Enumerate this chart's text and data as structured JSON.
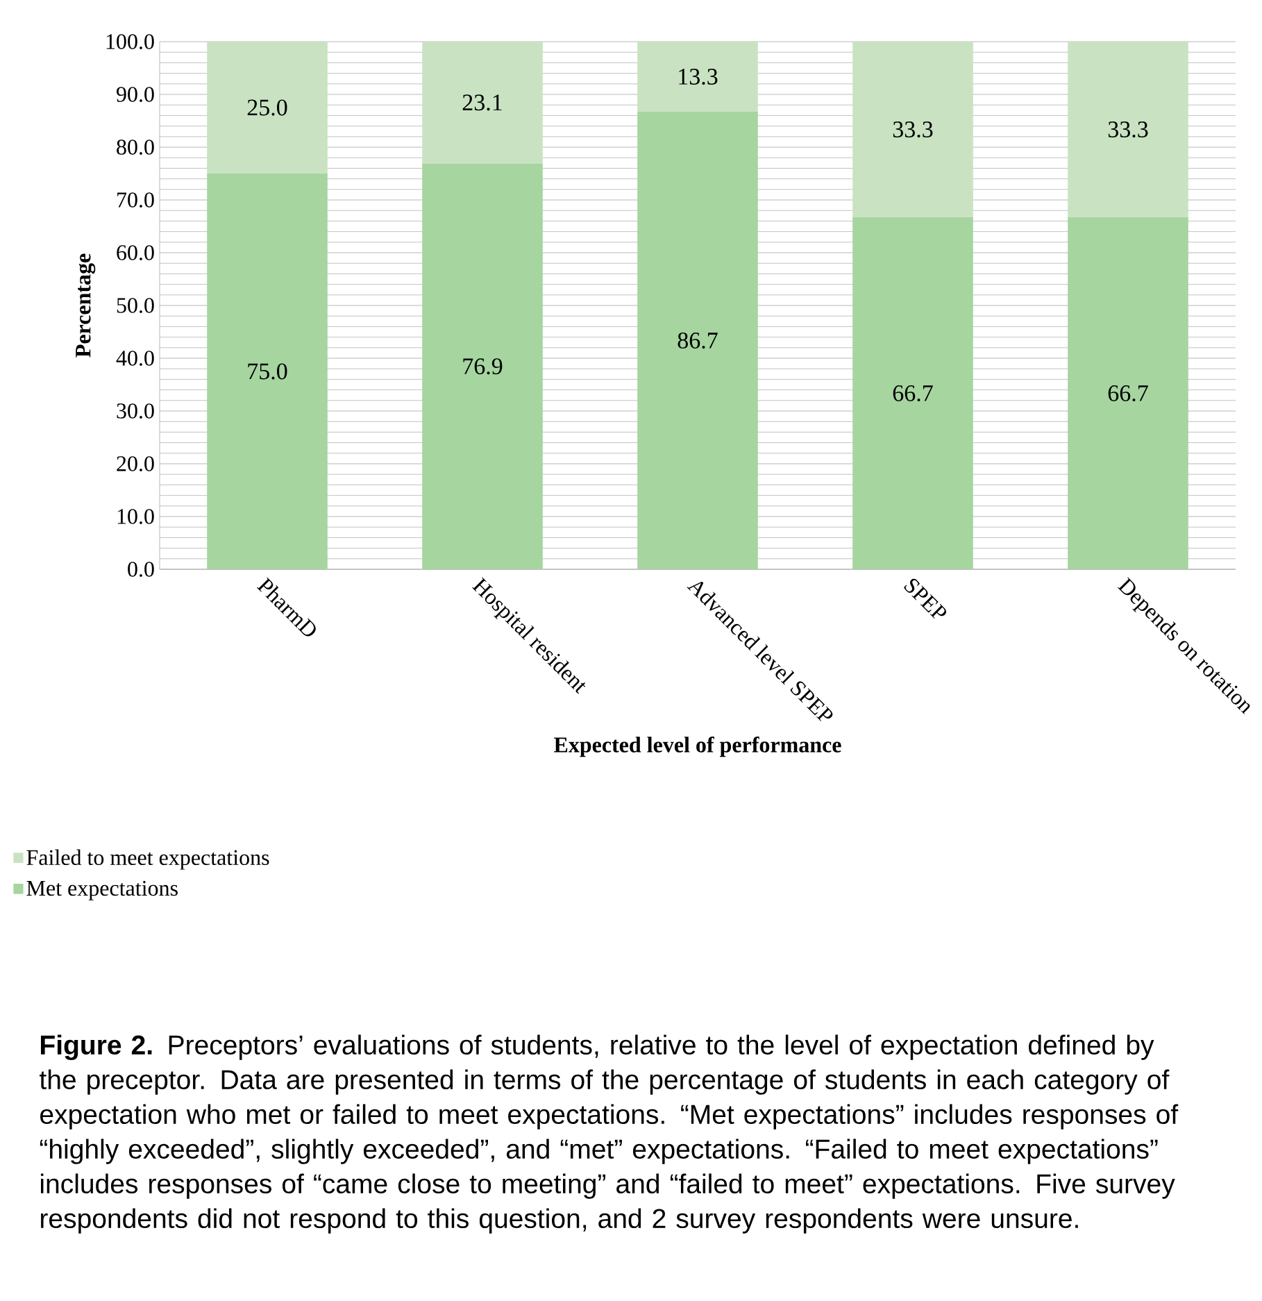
{
  "chart_data": {
    "type": "bar",
    "stacked": true,
    "xlabel": "Expected level of performance",
    "ylabel": "Percentage",
    "categories": [
      "PharmD",
      "Hospital resident",
      "Advanced level SPEP",
      "SPEP",
      "Depends on rotation"
    ],
    "series": [
      {
        "name": "Met expectations",
        "color": "#a6d5a0",
        "values": [
          75.0,
          76.9,
          86.7,
          66.7,
          66.7
        ],
        "value_labels": [
          "75.0",
          "76.9",
          "86.7",
          "66.7",
          "66.7"
        ]
      },
      {
        "name": "Failed to meet expectations",
        "color": "#c9e3c2",
        "values": [
          25.0,
          23.1,
          13.3,
          33.3,
          33.3
        ],
        "value_labels": [
          "25.0",
          "23.1",
          "13.3",
          "33.3",
          "33.3"
        ]
      }
    ],
    "ylim": [
      0,
      100
    ],
    "yticks": [
      {
        "value": 0,
        "label": "0.0"
      },
      {
        "value": 10,
        "label": "10.0"
      },
      {
        "value": 20,
        "label": "20.0"
      },
      {
        "value": 30,
        "label": "30.0"
      },
      {
        "value": 40,
        "label": "40.0"
      },
      {
        "value": 50,
        "label": "50.0"
      },
      {
        "value": 60,
        "label": "60.0"
      },
      {
        "value": 70,
        "label": "70.0"
      },
      {
        "value": 80,
        "label": "80.0"
      },
      {
        "value": 90,
        "label": "90.0"
      },
      {
        "value": 100,
        "label": "100.0"
      }
    ],
    "grid": "y",
    "legend": "bottom left",
    "annotations": [
      "**Figure 2.** Preceptors’ evaluations of students, relative to the level of expectation defined by the preceptor. Data are presented in terms of the percentage of students in each category of expectation who met or failed to meet expectations. “Met expectations” includes responses of “highly exceeded”, slightly exceeded”, and “met” expectations. “Failed to meet expectations” includes responses of “came close to meeting” and “failed to meet” expectations. Five survey respondents did not respond to this question, and 2 survey respondents were unsure."
    ]
  }
}
